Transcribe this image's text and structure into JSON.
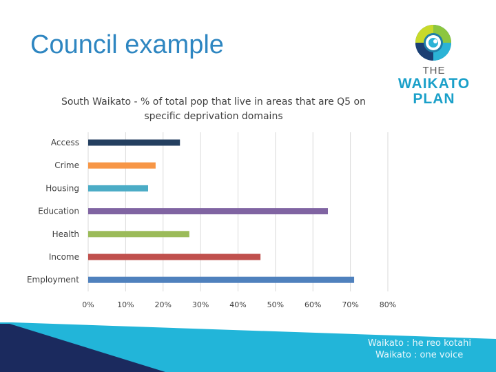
{
  "slide": {
    "title": "Council example"
  },
  "logo": {
    "line1": "THE",
    "line2": "WAIKATO",
    "line3": "PLAN",
    "color": "#1aa0c9"
  },
  "footer": {
    "tagline1": "Waikato : he reo kotahi",
    "tagline2": "Waikato : one voice",
    "colors": {
      "navy": "#1b2a5e",
      "cyan": "#22b5d9"
    }
  },
  "chart_data": {
    "type": "bar",
    "orientation": "horizontal",
    "title": "South Waikato - % of total pop that live in areas that are Q5 on specific deprivation domains",
    "categories": [
      "Access",
      "Crime",
      "Housing",
      "Education",
      "Health",
      "Income",
      "Employment"
    ],
    "values": [
      24.5,
      18,
      16,
      64,
      27,
      46,
      71
    ],
    "colors": [
      "#243f60",
      "#f79646",
      "#4bacc6",
      "#8064a2",
      "#9bbb59",
      "#c0504d",
      "#4f81bd"
    ],
    "xlim": [
      0,
      80
    ],
    "xticks": [
      "0%",
      "10%",
      "20%",
      "30%",
      "40%",
      "50%",
      "60%",
      "70%",
      "80%"
    ],
    "grid": "vertical",
    "legend": "none"
  }
}
